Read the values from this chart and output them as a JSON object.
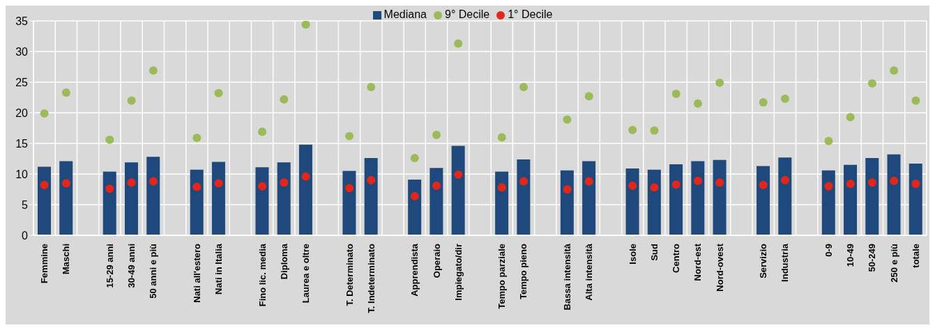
{
  "chart_data": {
    "type": "bar",
    "categories": [
      "Femmine",
      "Maschi",
      null,
      "15-29 anni",
      "30-49 anni",
      "50 anni e più",
      null,
      "Nati all'estero",
      "Nati in Italia",
      null,
      "Fino lic. media",
      "Diploma",
      "Laurea e oltre",
      null,
      "T. Determinato",
      "T. Indeterminato",
      null,
      "Apprendista",
      "Operaio",
      "Impiegato/dir",
      null,
      "Tempo parziale",
      "Tempo pieno",
      null,
      "Bassa intensità",
      "Alta intensità",
      null,
      "Isole",
      "Sud",
      "Centro",
      "Nord-est",
      "Nord-ovest",
      null,
      "Servizio",
      "Industria",
      null,
      "0-9",
      "10-49",
      "50-249",
      "250 e più",
      "totale"
    ],
    "series": [
      {
        "name": "Mediana",
        "color": "#1f497d",
        "values": [
          11.2,
          12.1,
          null,
          10.4,
          11.9,
          12.8,
          null,
          10.7,
          12.0,
          null,
          11.1,
          11.9,
          14.8,
          null,
          10.5,
          12.6,
          null,
          9.1,
          11.0,
          14.6,
          null,
          10.4,
          12.4,
          null,
          10.6,
          12.1,
          null,
          10.9,
          10.7,
          11.6,
          12.1,
          12.3,
          null,
          11.3,
          12.7,
          null,
          10.6,
          11.5,
          12.6,
          13.2,
          11.7
        ]
      },
      {
        "name": "9° Decile",
        "type": "scatter",
        "color": "#9bbb59",
        "values": [
          19.9,
          23.3,
          null,
          15.6,
          22.0,
          26.9,
          null,
          15.9,
          23.2,
          null,
          16.9,
          22.2,
          34.4,
          null,
          16.2,
          24.2,
          null,
          12.6,
          16.4,
          31.3,
          null,
          16.0,
          24.2,
          null,
          18.9,
          22.7,
          null,
          17.2,
          17.1,
          23.1,
          21.5,
          24.9,
          null,
          21.7,
          22.3,
          null,
          15.4,
          19.3,
          24.8,
          26.9,
          22.0
        ]
      },
      {
        "name": "1° Decile",
        "type": "scatter",
        "color": "#e3261a",
        "values": [
          8.2,
          8.5,
          null,
          7.6,
          8.6,
          8.8,
          null,
          7.9,
          8.5,
          null,
          8.0,
          8.6,
          9.6,
          null,
          7.7,
          9.0,
          null,
          6.4,
          8.1,
          9.9,
          null,
          7.8,
          8.8,
          null,
          7.5,
          8.8,
          null,
          8.1,
          7.8,
          8.3,
          8.9,
          8.6,
          null,
          8.2,
          9.0,
          null,
          8.0,
          8.4,
          8.6,
          8.9,
          8.4
        ]
      }
    ],
    "ylim": [
      0,
      35
    ],
    "yticks": [
      0,
      5,
      10,
      15,
      20,
      25,
      30,
      35
    ],
    "grid": true,
    "legend": "top",
    "marker": "circle"
  }
}
